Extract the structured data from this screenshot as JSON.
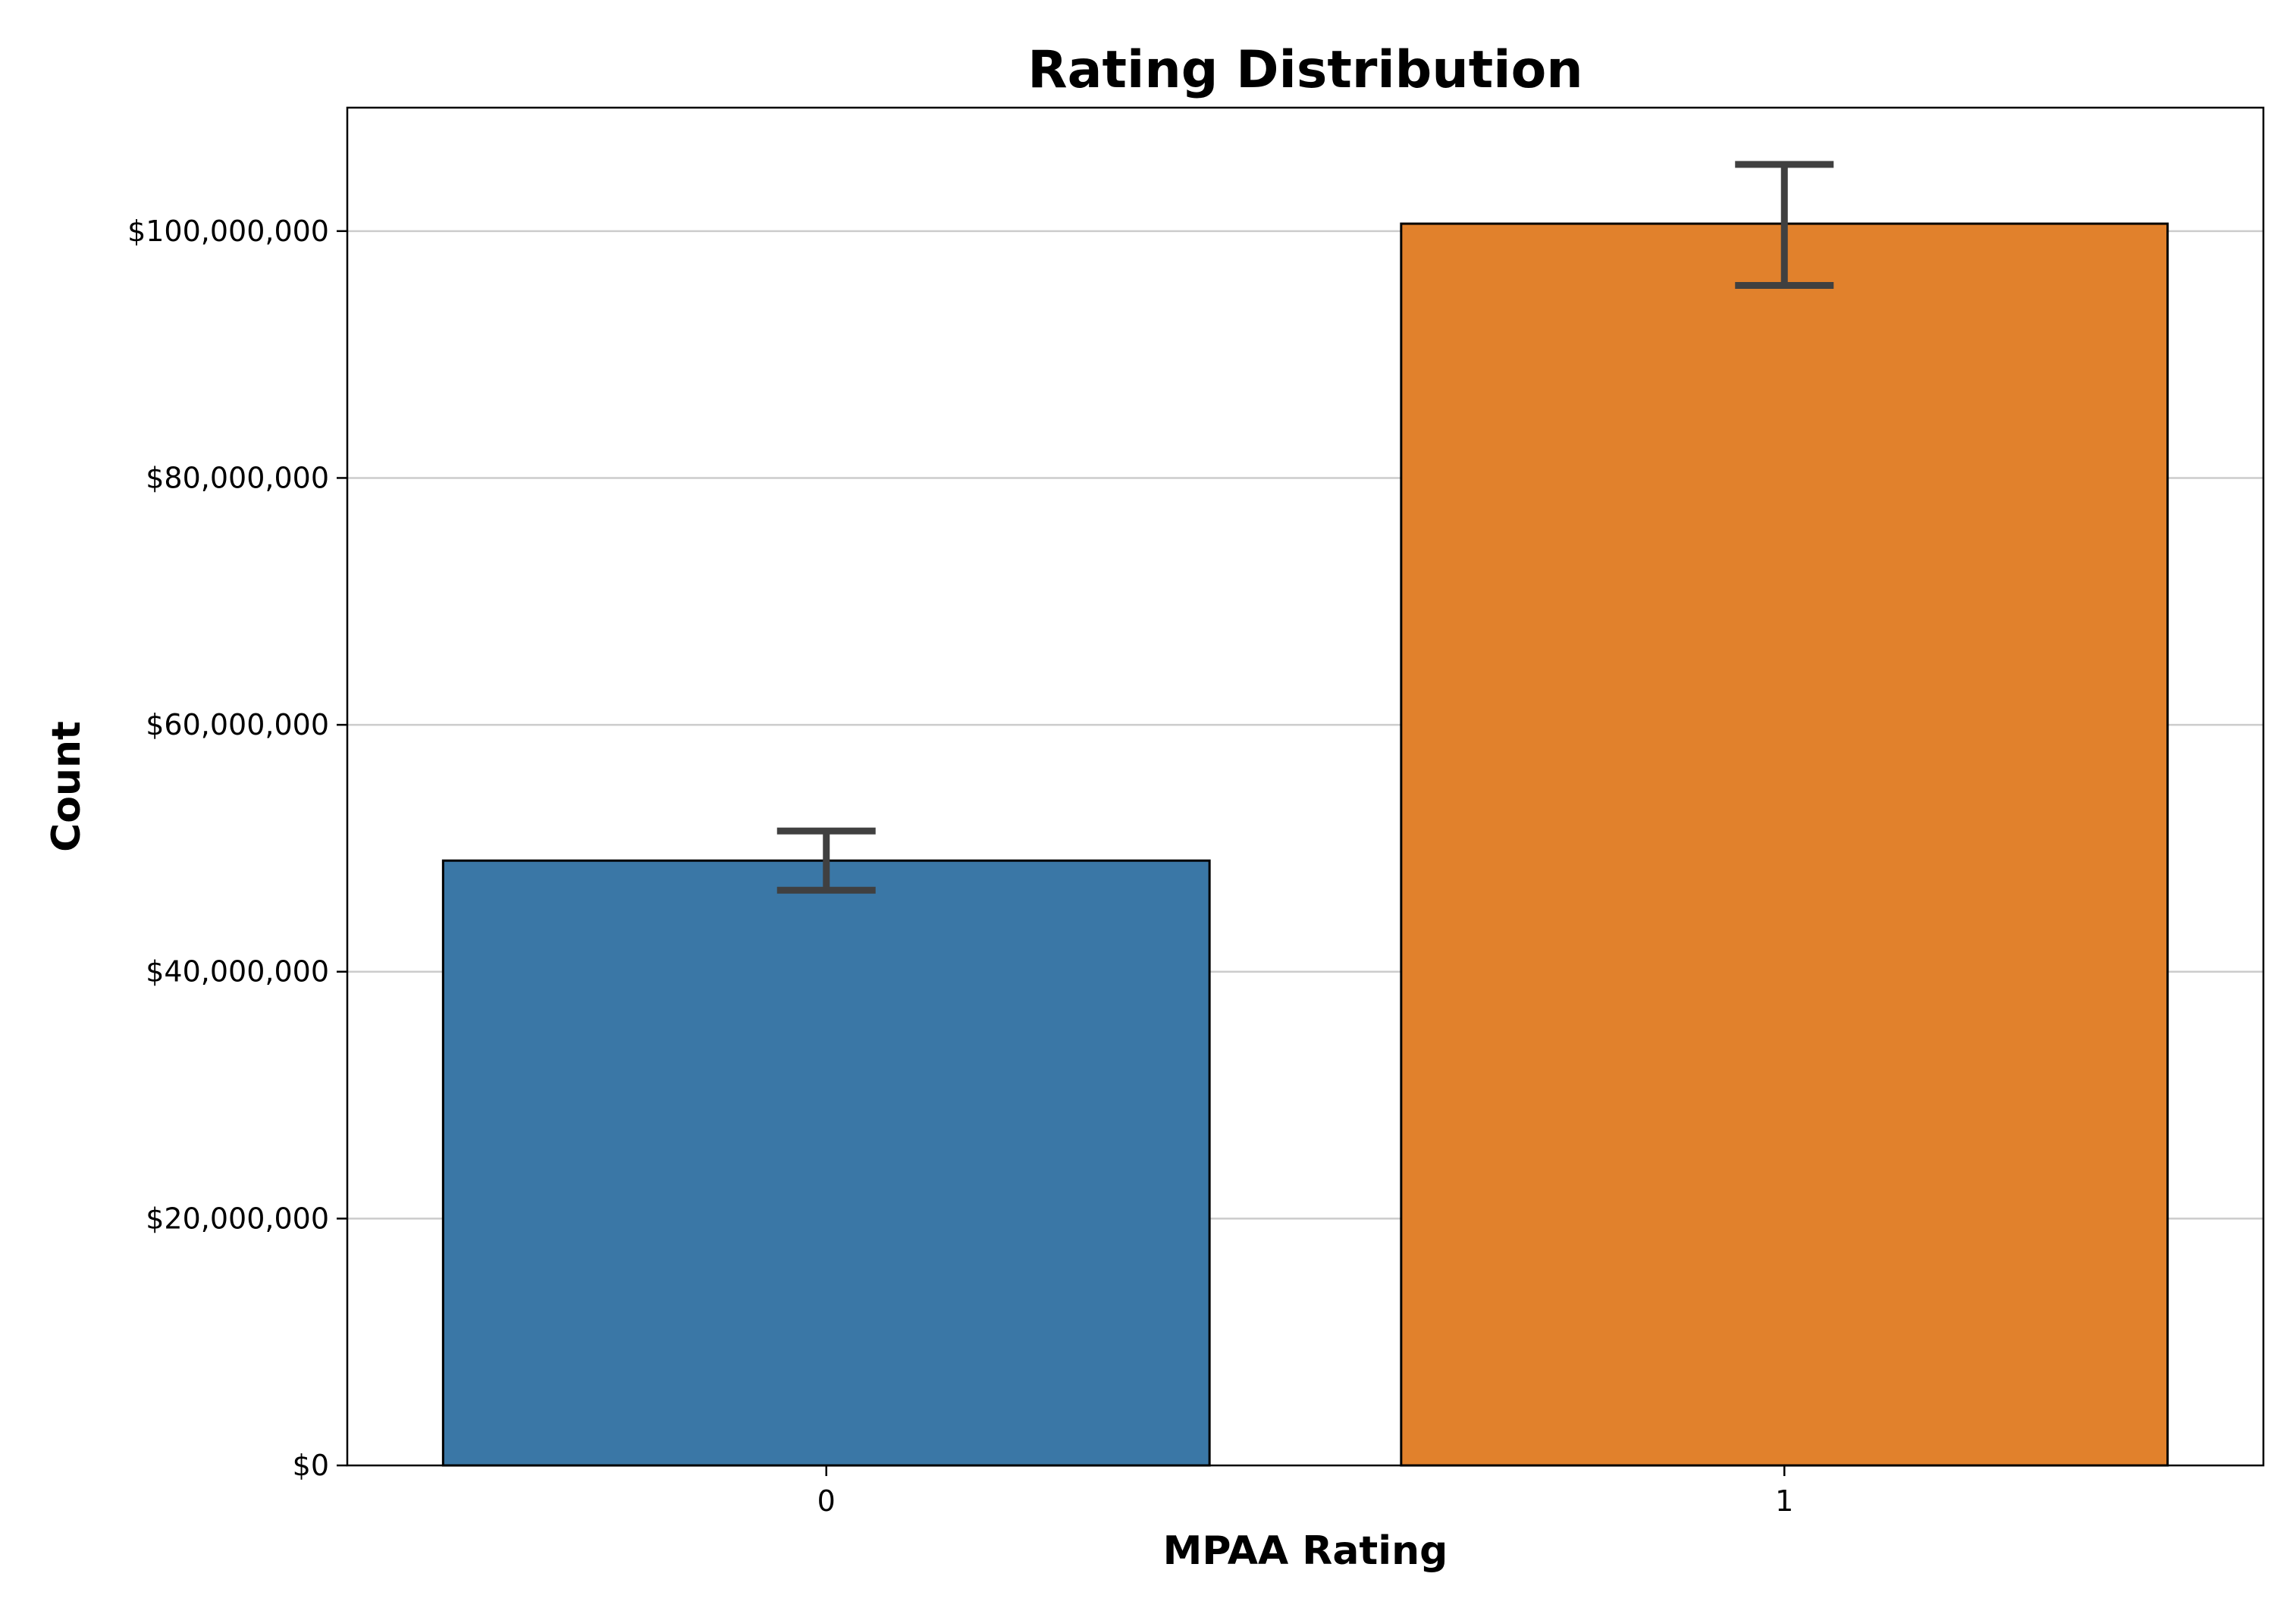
{
  "chart_data": {
    "type": "bar",
    "title": "Rating Distribution",
    "xlabel": "MPAA Rating",
    "ylabel": "Count",
    "categories": [
      "0",
      "1"
    ],
    "values": [
      49000000,
      100600000
    ],
    "error_bars": [
      {
        "low": 46600000,
        "high": 51400000
      },
      {
        "low": 95600000,
        "high": 105400000
      }
    ],
    "colors": [
      "#3a77a6",
      "#e1812c"
    ],
    "ylim": [
      0,
      110000000
    ],
    "yticks": [
      0,
      20000000,
      40000000,
      60000000,
      80000000,
      100000000
    ],
    "ytick_labels": [
      "$0",
      "$20,000,000",
      "$40,000,000",
      "$60,000,000",
      "$80,000,000",
      "$100,000,000"
    ],
    "grid": "y",
    "error_color": "#404040"
  }
}
